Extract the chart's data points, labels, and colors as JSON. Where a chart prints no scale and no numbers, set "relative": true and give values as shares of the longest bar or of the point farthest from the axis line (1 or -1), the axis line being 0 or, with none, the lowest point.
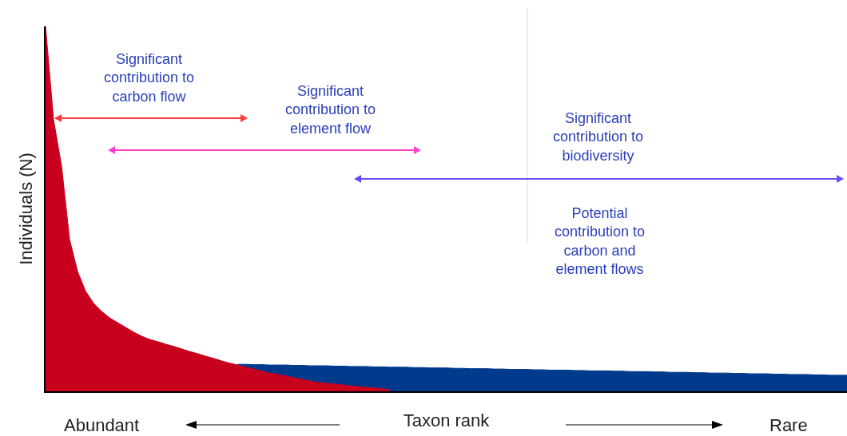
{
  "chart_data": {
    "type": "area",
    "relative": true,
    "ylabel": "Individuals (N)",
    "xlabel": "Taxon rank",
    "categories": [
      null,
      null,
      null,
      null,
      null,
      null,
      null,
      null,
      null,
      null,
      null,
      null,
      null,
      null,
      null,
      null,
      null,
      null,
      null,
      null,
      null,
      null,
      null,
      null,
      null,
      null,
      null,
      null,
      null,
      null,
      null,
      null,
      null,
      null,
      null,
      null,
      null,
      null,
      null,
      null,
      null,
      null,
      null,
      null,
      null,
      null,
      null,
      null,
      null,
      null,
      null,
      null,
      null,
      null,
      null,
      null,
      null,
      null,
      null,
      null,
      null,
      null,
      null,
      null,
      null,
      null,
      null,
      null,
      null,
      null,
      null,
      null,
      null,
      null,
      null,
      null,
      null,
      null,
      null,
      null,
      null,
      null,
      null,
      null,
      null,
      null,
      null,
      null,
      null,
      null,
      null,
      null,
      null,
      null,
      null,
      null,
      null,
      null,
      null,
      null,
      null
    ],
    "series": [
      {
        "color": "#003a8c",
        "values": [
          null,
          null,
          null,
          null,
          null,
          null,
          null,
          null,
          null,
          null,
          null,
          null,
          null,
          null,
          null,
          null,
          null,
          null,
          null,
          null,
          null,
          null,
          null,
          null,
          0.074,
          0.074,
          0.073,
          0.073,
          0.072,
          0.072,
          0.072,
          0.071,
          0.071,
          0.07,
          0.07,
          0.07,
          0.069,
          0.069,
          0.068,
          0.068,
          0.068,
          0.067,
          0.067,
          0.066,
          0.066,
          0.066,
          0.065,
          0.065,
          0.064,
          0.064,
          0.064,
          0.063,
          0.063,
          0.062,
          0.062,
          0.062,
          0.061,
          0.061,
          0.06,
          0.06,
          0.06,
          0.059,
          0.059,
          0.058,
          0.058,
          0.058,
          0.057,
          0.057,
          0.056,
          0.056,
          0.056,
          0.055,
          0.055,
          0.054,
          0.054,
          0.054,
          0.053,
          0.053,
          0.052,
          0.052,
          0.052,
          0.051,
          0.051,
          0.05,
          0.05,
          0.05,
          0.049,
          0.049,
          0.048,
          0.048,
          0.048,
          0.047,
          0.047,
          0.046,
          0.046,
          0.046,
          0.045,
          0.045,
          0.044,
          0.044,
          0.044
        ]
      },
      {
        "color": "#c8001e",
        "values": [
          1.0,
          0.744,
          0.617,
          0.416,
          0.328,
          0.274,
          0.241,
          0.219,
          0.201,
          0.188,
          0.175,
          0.162,
          0.151,
          0.142,
          0.136,
          0.129,
          0.123,
          0.116,
          0.109,
          0.103,
          0.096,
          0.09,
          0.083,
          0.077,
          0.072,
          0.066,
          0.061,
          0.055,
          0.05,
          0.046,
          0.042,
          0.037,
          0.033,
          0.028,
          0.024,
          0.022,
          0.02,
          0.018,
          0.015,
          0.013,
          0.011,
          0.009,
          0.007,
          0.004,
          null,
          null,
          null,
          null,
          null,
          null,
          null,
          null,
          null,
          null,
          null,
          null,
          null,
          null,
          null,
          null,
          null,
          null,
          null,
          null,
          null,
          null,
          null,
          null,
          null,
          null,
          null,
          null,
          null,
          null,
          null,
          null,
          null,
          null,
          null,
          null,
          null,
          null,
          null,
          null,
          null,
          null,
          null,
          null,
          null,
          null,
          null,
          null,
          null,
          null,
          null,
          null,
          null,
          null,
          null,
          null,
          null
        ]
      }
    ],
    "annotations": [
      "Significant\ncontribution to\ncarbon flow",
      "Significant\ncontribution to\nelement flow",
      "Significant\ncontribution to\nbiodiversity",
      "Potential\ncontribution to\ncarbon and\nelement flows",
      "Abundant",
      "Rare"
    ]
  }
}
